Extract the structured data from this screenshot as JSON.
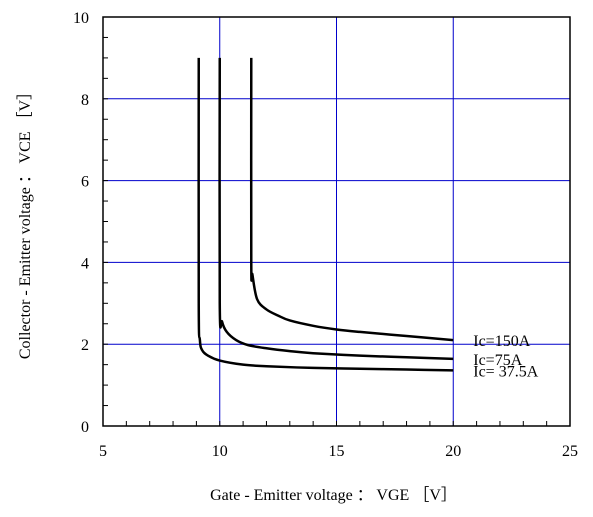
{
  "chart_data": {
    "type": "line",
    "title": "",
    "xlabel": "Gate - Emitter voltage ： VGE ［V］",
    "ylabel": "Collector - Emitter voltage ： VCE ［V］",
    "xlim": [
      5,
      25
    ],
    "ylim": [
      0,
      10
    ],
    "xticks": [
      5,
      10,
      15,
      20,
      25
    ],
    "yticks": [
      0,
      2,
      4,
      6,
      8,
      10
    ],
    "grid": true,
    "grid_color": "#0000cc",
    "line_color": "#000000",
    "series": [
      {
        "name": "Ic= 37.5A",
        "x": [
          9.1,
          9.1,
          9.15,
          9.25,
          9.5,
          10,
          11,
          12,
          14,
          16,
          18,
          20
        ],
        "y": [
          9.0,
          3.0,
          2.1,
          1.85,
          1.72,
          1.6,
          1.5,
          1.46,
          1.42,
          1.4,
          1.38,
          1.36
        ]
      },
      {
        "name": "Ic=75A",
        "x": [
          10.0,
          10.0,
          10.1,
          10.3,
          10.7,
          11.2,
          12,
          13,
          14,
          16,
          18,
          20
        ],
        "y": [
          9.0,
          3.0,
          2.55,
          2.3,
          2.1,
          1.98,
          1.9,
          1.83,
          1.78,
          1.72,
          1.68,
          1.64
        ]
      },
      {
        "name": "Ic=150A",
        "x": [
          11.35,
          11.35,
          11.4,
          11.6,
          12,
          12.5,
          13,
          14,
          15,
          16,
          18,
          20
        ],
        "y": [
          9.0,
          4.0,
          3.7,
          3.1,
          2.85,
          2.7,
          2.58,
          2.45,
          2.36,
          2.3,
          2.2,
          2.1
        ]
      }
    ]
  }
}
